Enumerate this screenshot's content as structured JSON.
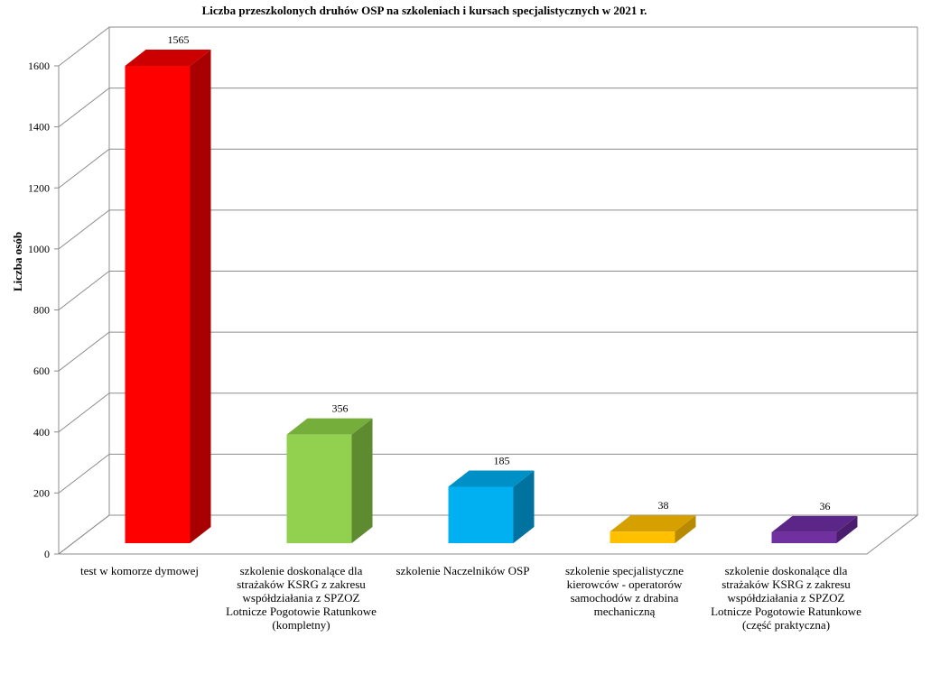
{
  "chart_data": {
    "type": "bar",
    "title": "Liczba przeszkolonych druhów  OSP na  szkoleniach i kursach specjalistycznych w 2021 r.",
    "ylabel": "Liczba osób",
    "xlabel": "",
    "ylim": [
      0,
      1600
    ],
    "yticks": [
      0,
      200,
      400,
      600,
      800,
      1000,
      1200,
      1400,
      1600
    ],
    "grid": true,
    "style": "3d-column",
    "categories": [
      "test w komorze dymowej",
      "szkolenie doskonalące dla strażaków KSRG z zakresu współdziałania z SPZOZ Lotnicze Pogotowie Ratunkowe (kompletny)",
      "szkolenie Naczelników OSP",
      "szkolenie specjalistyczne kierowców - operatorów samochodów z drabina mechaniczną",
      "szkolenie doskonalące dla strażaków KSRG z zakresu współdziałania z SPZOZ Lotnicze Pogotowie Ratunkowe (część praktyczna)"
    ],
    "values": [
      1565,
      356,
      185,
      38,
      36
    ],
    "colors": [
      {
        "front": "#ff0000",
        "side": "#a80000",
        "top": "#cc0000"
      },
      {
        "front": "#92d050",
        "side": "#5e8a30",
        "top": "#76ae3c"
      },
      {
        "front": "#00b0f0",
        "side": "#0072a0",
        "top": "#0090c8"
      },
      {
        "front": "#ffc000",
        "side": "#b88a00",
        "top": "#d6a000"
      },
      {
        "front": "#7030a0",
        "side": "#4a1e6c",
        "top": "#5c2688"
      }
    ]
  }
}
